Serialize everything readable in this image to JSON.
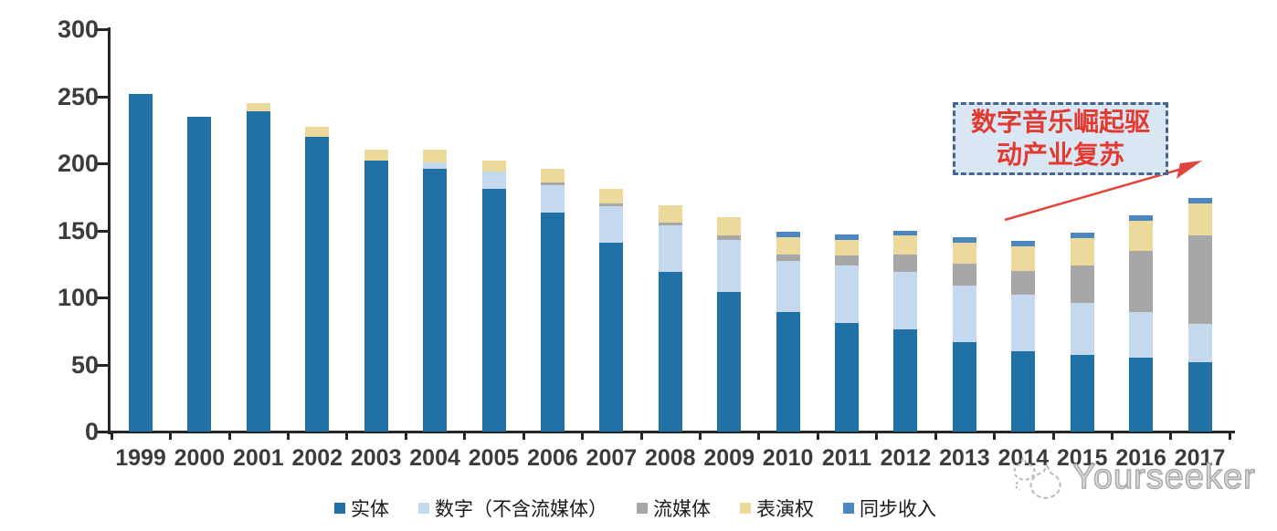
{
  "chart_data": {
    "type": "bar",
    "stacked": true,
    "title": "",
    "categories": [
      "1999",
      "2000",
      "2001",
      "2002",
      "2003",
      "2004",
      "2005",
      "2006",
      "2007",
      "2008",
      "2009",
      "2010",
      "2011",
      "2012",
      "2013",
      "2014",
      "2015",
      "2016",
      "2017"
    ],
    "series": [
      {
        "key": "physical",
        "name": "实体",
        "color": "#2171a9",
        "values": [
          252,
          235,
          239,
          220,
          202,
          196,
          181,
          163,
          141,
          119,
          104,
          89,
          81,
          76,
          67,
          60,
          57,
          55,
          52
        ]
      },
      {
        "key": "digital",
        "name": "数字（不含流媒体）",
        "color": "#c5d9ee",
        "values": [
          0,
          0,
          0,
          0,
          0,
          5,
          13,
          21,
          27,
          35,
          39,
          38,
          43,
          43,
          42,
          42,
          39,
          34,
          28
        ]
      },
      {
        "key": "streaming",
        "name": "流媒体",
        "color": "#a7a7a7",
        "values": [
          0,
          0,
          0,
          0,
          0,
          0,
          0,
          2,
          2,
          2,
          3,
          5,
          7,
          13,
          16,
          18,
          28,
          46,
          66
        ]
      },
      {
        "key": "performance",
        "name": "表演权",
        "color": "#ecd99c",
        "values": [
          0,
          0,
          6,
          7,
          8,
          9,
          8,
          10,
          11,
          13,
          14,
          13,
          12,
          14,
          16,
          18,
          20,
          22,
          24
        ]
      },
      {
        "key": "sync",
        "name": "同步收入",
        "color": "#4c86c0",
        "values": [
          0,
          0,
          0,
          0,
          0,
          0,
          0,
          0,
          0,
          0,
          0,
          4,
          4,
          4,
          4,
          4,
          4,
          4,
          4
        ]
      }
    ],
    "ylim": [
      0,
      300
    ],
    "yticks": [
      0,
      50,
      100,
      150,
      200,
      250,
      300
    ],
    "xlabel": "",
    "ylabel": "",
    "grid": false,
    "legend_position": "bottom"
  },
  "annotation": {
    "line1": "数字音乐崛起驱",
    "line2": "动产业复苏",
    "text_color": "#e23a30",
    "box_border_color": "#45658d",
    "box_fill_color": "#d9e6f3",
    "arrow_color": "#e2453c"
  },
  "watermark": {
    "text": "Yourseeker",
    "color": "#b9b9b9"
  },
  "axis": {
    "line_color": "#262626",
    "label_color": "#3c3c3c"
  }
}
